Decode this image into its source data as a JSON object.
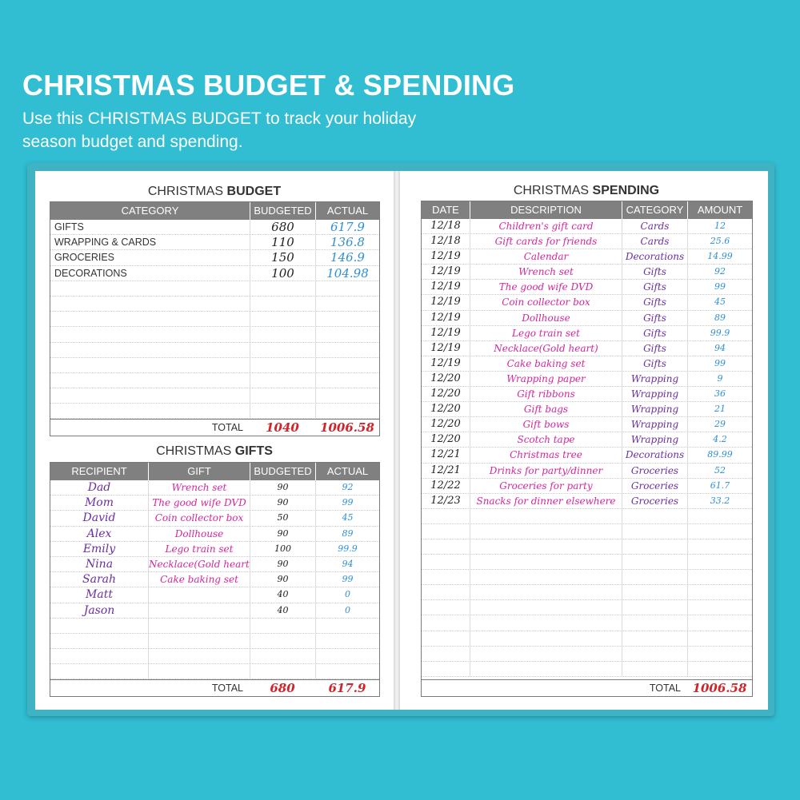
{
  "banner": {
    "title": "CHRISTMAS BUDGET & SPENDING",
    "subtitle": "Use this CHRISTMAS BUDGET to track your holiday season budget and spending."
  },
  "budget": {
    "title_light": "CHRISTMAS ",
    "title_bold": "BUDGET",
    "headers": [
      "CATEGORY",
      "BUDGETED",
      "ACTUAL"
    ],
    "rows": [
      {
        "category": "GIFTS",
        "budgeted": "680",
        "actual": "617.9"
      },
      {
        "category": "WRAPPING & CARDS",
        "budgeted": "110",
        "actual": "136.8"
      },
      {
        "category": "GROCERIES",
        "budgeted": "150",
        "actual": "146.9"
      },
      {
        "category": "DECORATIONS",
        "budgeted": "100",
        "actual": "104.98"
      }
    ],
    "total_label": "TOTAL",
    "total_budgeted": "1040",
    "total_actual": "1006.58"
  },
  "gifts": {
    "title_light": "CHRISTMAS ",
    "title_bold": "GIFTS",
    "headers": [
      "RECIPIENT",
      "GIFT",
      "BUDGETED",
      "ACTUAL"
    ],
    "rows": [
      {
        "recipient": "Dad",
        "gift": "Wrench set",
        "budgeted": "90",
        "actual": "92"
      },
      {
        "recipient": "Mom",
        "gift": "The good wife DVD",
        "budgeted": "90",
        "actual": "99"
      },
      {
        "recipient": "David",
        "gift": "Coin collector box",
        "budgeted": "50",
        "actual": "45"
      },
      {
        "recipient": "Alex",
        "gift": "Dollhouse",
        "budgeted": "90",
        "actual": "89"
      },
      {
        "recipient": "Emily",
        "gift": "Lego train set",
        "budgeted": "100",
        "actual": "99.9"
      },
      {
        "recipient": "Nina",
        "gift": "Necklace(Gold heart)",
        "budgeted": "90",
        "actual": "94"
      },
      {
        "recipient": "Sarah",
        "gift": "Cake baking set",
        "budgeted": "90",
        "actual": "99"
      },
      {
        "recipient": "Matt",
        "gift": "",
        "budgeted": "40",
        "actual": "0"
      },
      {
        "recipient": "Jason",
        "gift": "",
        "budgeted": "40",
        "actual": "0"
      }
    ],
    "total_label": "TOTAL",
    "total_budgeted": "680",
    "total_actual": "617.9"
  },
  "spending": {
    "title_light": "CHRISTMAS ",
    "title_bold": "SPENDING",
    "headers": [
      "DATE",
      "DESCRIPTION",
      "CATEGORY",
      "AMOUNT"
    ],
    "rows": [
      {
        "date": "12/18",
        "description": "Children's gift card",
        "category": "Cards",
        "amount": "12"
      },
      {
        "date": "12/18",
        "description": "Gift cards for friends",
        "category": "Cards",
        "amount": "25.6"
      },
      {
        "date": "12/19",
        "description": "Calendar",
        "category": "Decorations",
        "amount": "14.99"
      },
      {
        "date": "12/19",
        "description": "Wrench set",
        "category": "Gifts",
        "amount": "92"
      },
      {
        "date": "12/19",
        "description": "The good wife DVD",
        "category": "Gifts",
        "amount": "99"
      },
      {
        "date": "12/19",
        "description": "Coin collector box",
        "category": "Gifts",
        "amount": "45"
      },
      {
        "date": "12/19",
        "description": "Dollhouse",
        "category": "Gifts",
        "amount": "89"
      },
      {
        "date": "12/19",
        "description": "Lego train set",
        "category": "Gifts",
        "amount": "99.9"
      },
      {
        "date": "12/19",
        "description": "Necklace(Gold heart)",
        "category": "Gifts",
        "amount": "94"
      },
      {
        "date": "12/19",
        "description": "Cake baking set",
        "category": "Gifts",
        "amount": "99"
      },
      {
        "date": "12/20",
        "description": "Wrapping paper",
        "category": "Wrapping",
        "amount": "9"
      },
      {
        "date": "12/20",
        "description": "Gift ribbons",
        "category": "Wrapping",
        "amount": "36"
      },
      {
        "date": "12/20",
        "description": "Gift bags",
        "category": "Wrapping",
        "amount": "21"
      },
      {
        "date": "12/20",
        "description": "Gift bows",
        "category": "Wrapping",
        "amount": "29"
      },
      {
        "date": "12/20",
        "description": "Scotch tape",
        "category": "Wrapping",
        "amount": "4.2"
      },
      {
        "date": "12/21",
        "description": "Christmas tree",
        "category": "Decorations",
        "amount": "89.99"
      },
      {
        "date": "12/21",
        "description": "Drinks for party/dinner",
        "category": "Groceries",
        "amount": "52"
      },
      {
        "date": "12/22",
        "description": "Groceries for party",
        "category": "Groceries",
        "amount": "61.7"
      },
      {
        "date": "12/23",
        "description": "Snacks for dinner elsewhere",
        "category": "Groceries",
        "amount": "33.2"
      }
    ],
    "total_label": "TOTAL",
    "total_amount": "1006.58"
  },
  "colors": {
    "background": "#31bdd2",
    "header_gray": "#808080",
    "handwriting_purple": "#6a2fa0",
    "handwriting_magenta": "#d4279a",
    "handwriting_blue": "#2e8fd6",
    "total_red": "#d2232a"
  }
}
